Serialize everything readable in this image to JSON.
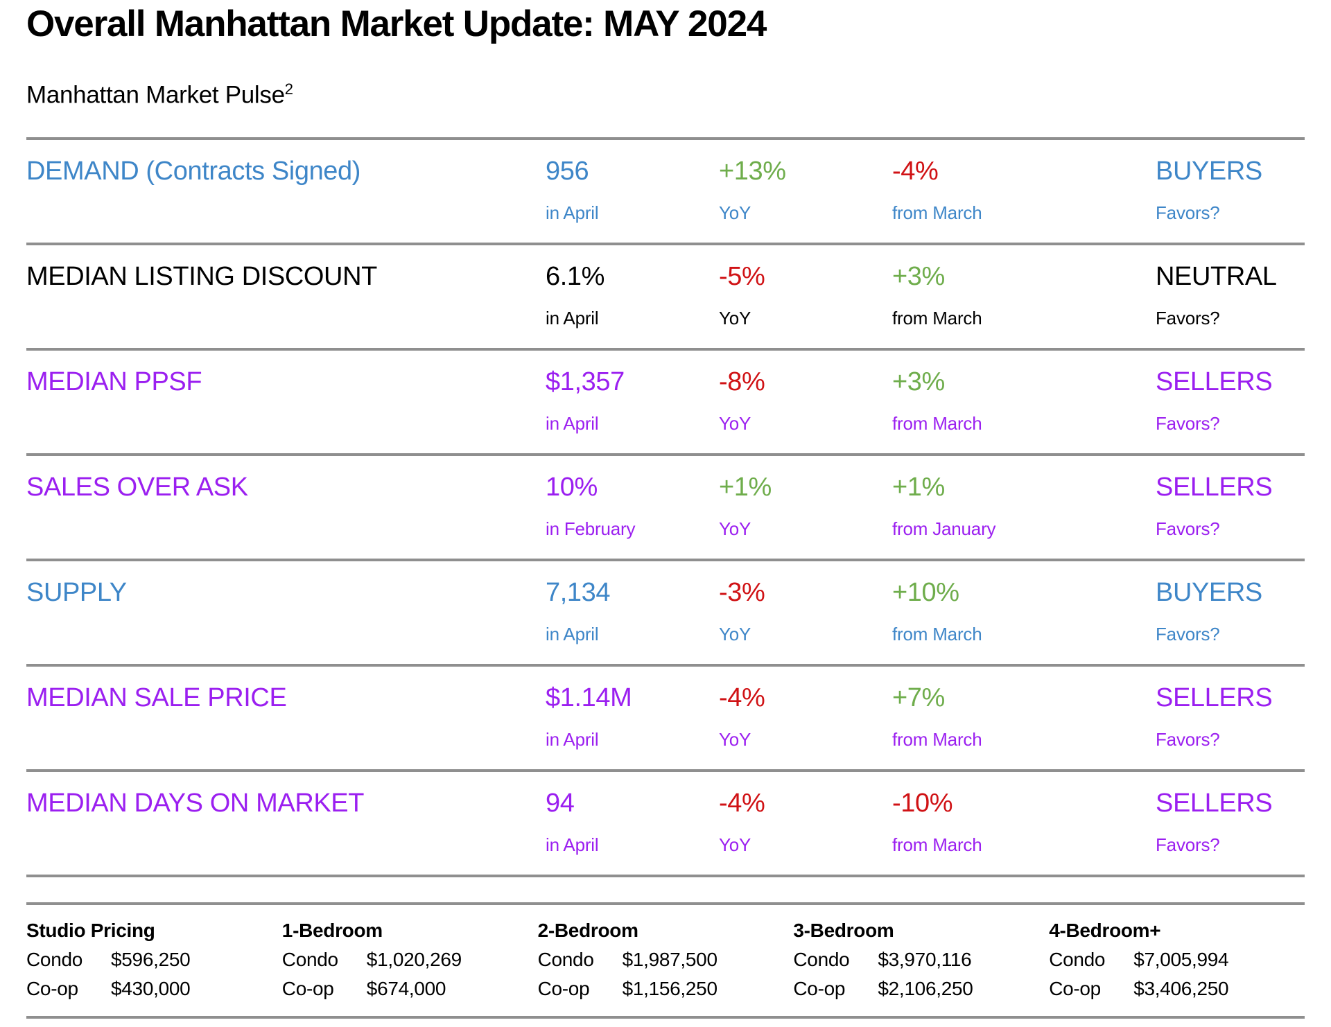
{
  "header": {
    "title": "Overall Manhattan Market Update: MAY 2024",
    "subtitle": "Manhattan Market Pulse",
    "subtitle_superscript": "2"
  },
  "theme": {
    "blue": "#3e86c8",
    "purple": "#9b1ff0",
    "green": "#6fad4c",
    "red": "#d01215",
    "black": "#000000",
    "divider_gray": "#8f8f8f"
  },
  "pulse": {
    "rows": [
      {
        "label": "DEMAND (Contracts Signed)",
        "color": "blue",
        "value": "956",
        "value_sub": "in April",
        "yoy": "+13%",
        "yoy_color": "green",
        "yoy_sub": "YoY",
        "mom": "-4%",
        "mom_color": "red",
        "mom_sub": "from March",
        "favors": "BUYERS",
        "favors_sub": "Favors?"
      },
      {
        "label": "MEDIAN LISTING DISCOUNT",
        "color": "black",
        "value": "6.1%",
        "value_sub": "in April",
        "yoy": "-5%",
        "yoy_color": "red",
        "yoy_sub": "YoY",
        "mom": "+3%",
        "mom_color": "green",
        "mom_sub": "from March",
        "favors": "NEUTRAL",
        "favors_sub": "Favors?"
      },
      {
        "label": "MEDIAN PPSF",
        "color": "purple",
        "value": "$1,357",
        "value_sub": "in April",
        "yoy": "-8%",
        "yoy_color": "red",
        "yoy_sub": "YoY",
        "mom": "+3%",
        "mom_color": "green",
        "mom_sub": "from March",
        "favors": "SELLERS",
        "favors_sub": "Favors?"
      },
      {
        "label": "SALES OVER ASK",
        "color": "purple",
        "value": "10%",
        "value_sub": "in February",
        "yoy": "+1%",
        "yoy_color": "green",
        "yoy_sub": "YoY",
        "mom": "+1%",
        "mom_color": "green",
        "mom_sub": "from January",
        "favors": "SELLERS",
        "favors_sub": "Favors?"
      },
      {
        "label": "SUPPLY",
        "color": "blue",
        "value": "7,134",
        "value_sub": "in April",
        "yoy": "-3%",
        "yoy_color": "red",
        "yoy_sub": "YoY",
        "mom": "+10%",
        "mom_color": "green",
        "mom_sub": "from March",
        "favors": "BUYERS",
        "favors_sub": "Favors?"
      },
      {
        "label": "MEDIAN SALE PRICE",
        "color": "purple",
        "value": "$1.14M",
        "value_sub": "in April",
        "yoy": "-4%",
        "yoy_color": "red",
        "yoy_sub": "YoY",
        "mom": "+7%",
        "mom_color": "green",
        "mom_sub": "from March",
        "favors": "SELLERS",
        "favors_sub": "Favors?"
      },
      {
        "label": "MEDIAN DAYS ON MARKET",
        "color": "purple",
        "value": "94",
        "value_sub": "in April",
        "yoy": "-4%",
        "yoy_color": "red",
        "yoy_sub": "YoY",
        "mom": "-10%",
        "mom_color": "red",
        "mom_sub": "from March",
        "favors": "SELLERS",
        "favors_sub": "Favors?"
      }
    ]
  },
  "pricing": {
    "condo_label": "Condo",
    "coop_label": "Co-op",
    "columns": [
      {
        "header": "Studio Pricing",
        "condo": "$596,250",
        "coop": "$430,000"
      },
      {
        "header": "1-Bedroom",
        "condo": "$1,020,269",
        "coop": "$674,000"
      },
      {
        "header": "2-Bedroom",
        "condo": "$1,987,500",
        "coop": "$1,156,250"
      },
      {
        "header": "3-Bedroom",
        "condo": "$3,970,116",
        "coop": "$2,106,250"
      },
      {
        "header": "4-Bedroom+",
        "condo": "$7,005,994",
        "coop": "$3,406,250"
      }
    ]
  }
}
